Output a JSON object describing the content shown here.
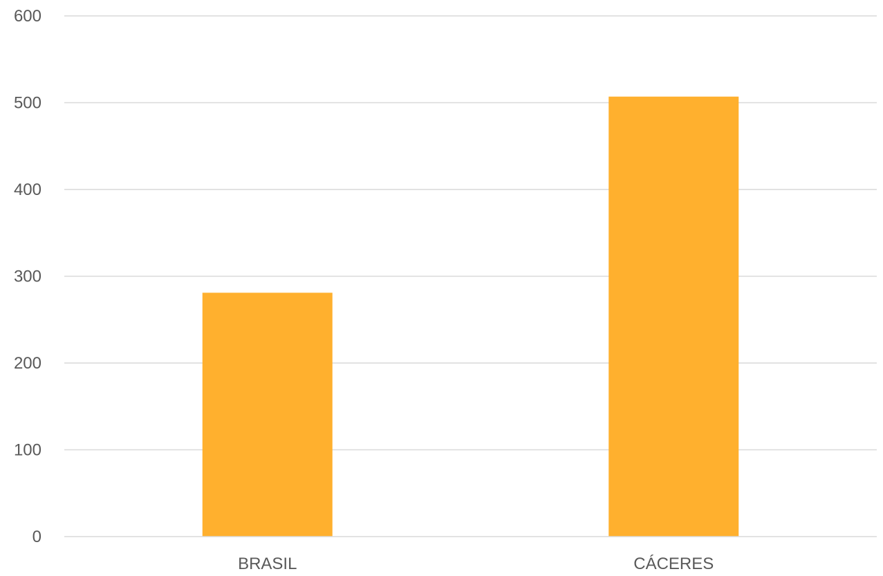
{
  "chart_data": {
    "type": "bar",
    "title": "",
    "xlabel": "",
    "ylabel": "",
    "categories": [
      "BRASIL",
      "CÁCERES"
    ],
    "series": [
      {
        "values": [
          281,
          507
        ],
        "color": "#FFB02E"
      }
    ],
    "ylim": [
      0,
      600
    ],
    "yticks": [
      0,
      100,
      200,
      300,
      400,
      500,
      600
    ],
    "grid": true,
    "legend": "none"
  }
}
